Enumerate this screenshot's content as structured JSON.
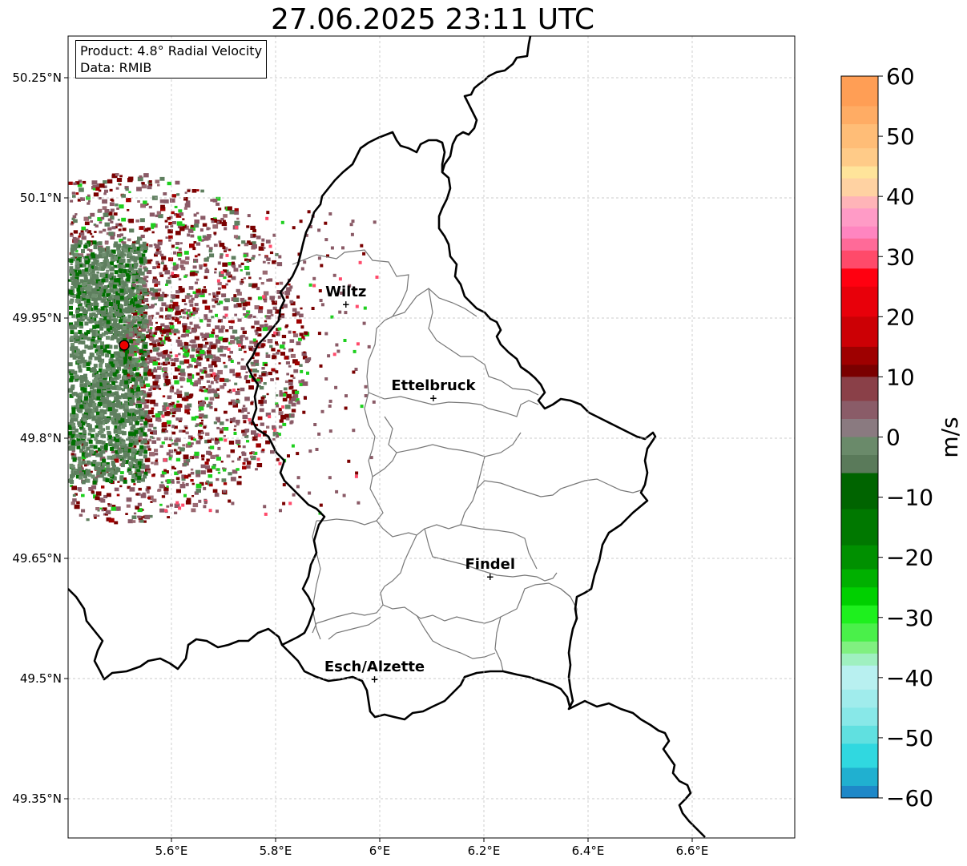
{
  "title": "27.06.2025 23:11 UTC",
  "info": {
    "product": "Product: 4.8° Radial Velocity",
    "data": "Data: RMIB"
  },
  "lat_ticks": [
    "50.25°N",
    "50.1°N",
    "49.95°N",
    "49.8°N",
    "49.65°N",
    "49.5°N",
    "49.35°N"
  ],
  "lon_ticks": [
    "5.6°E",
    "5.8°E",
    "6°E",
    "6.2°E",
    "6.4°E",
    "6.6°E"
  ],
  "cities": [
    {
      "name": "Wiltz",
      "lon": 5.935,
      "lat": 49.967
    },
    {
      "name": "Ettelbruck",
      "lon": 6.103,
      "lat": 49.85
    },
    {
      "name": "Findel",
      "lon": 6.212,
      "lat": 49.627
    },
    {
      "name": "Esch/Alzette",
      "lon": 5.99,
      "lat": 49.499
    }
  ],
  "radar_site": {
    "lon": 5.505,
    "lat": 49.914
  },
  "colorbar": {
    "label": "m/s",
    "ticks": [
      "60",
      "50",
      "40",
      "30",
      "20",
      "10",
      "0",
      "−10",
      "−20",
      "−30",
      "−40",
      "−50",
      "−60"
    ],
    "min": -60,
    "max": 60
  }
}
